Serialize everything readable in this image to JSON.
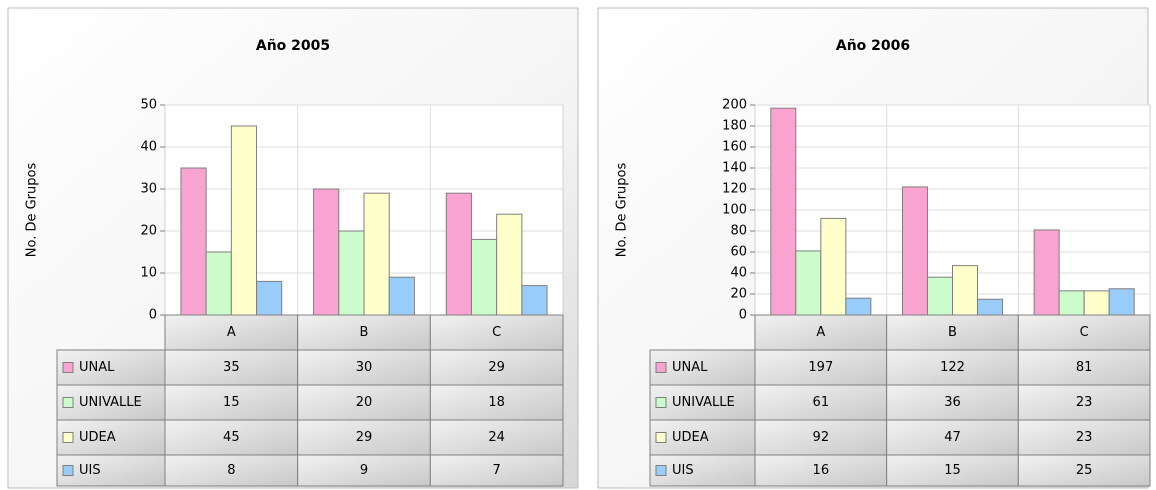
{
  "chart_data": [
    {
      "type": "bar",
      "title": "Año 2005",
      "y_label": "No. De Grupos",
      "categories": [
        "A",
        "B",
        "C"
      ],
      "series": [
        {
          "name": "UNAL",
          "color": "#f9a3d0",
          "values": [
            35,
            30,
            29
          ]
        },
        {
          "name": "UNIVALLE",
          "color": "#ccfccc",
          "values": [
            15,
            20,
            18
          ]
        },
        {
          "name": "UDEA",
          "color": "#ffffcc",
          "values": [
            45,
            29,
            24
          ]
        },
        {
          "name": "UIS",
          "color": "#99ccf8",
          "values": [
            8,
            9,
            7
          ]
        }
      ],
      "ylim": [
        0,
        50
      ],
      "yticks": [
        0,
        10,
        20,
        30,
        40,
        50
      ],
      "grid": true
    },
    {
      "type": "bar",
      "title": "Año 2006",
      "y_label": "No. De Grupos",
      "categories": [
        "A",
        "B",
        "C"
      ],
      "series": [
        {
          "name": "UNAL",
          "color": "#f9a3d0",
          "values": [
            197,
            122,
            81
          ]
        },
        {
          "name": "UNIVALLE",
          "color": "#ccfccc",
          "values": [
            61,
            36,
            23
          ]
        },
        {
          "name": "UDEA",
          "color": "#ffffcc",
          "values": [
            92,
            47,
            23
          ]
        },
        {
          "name": "UIS",
          "color": "#99ccf8",
          "values": [
            16,
            15,
            25
          ]
        }
      ],
      "ylim": [
        0,
        200
      ],
      "yticks": [
        0,
        20,
        40,
        60,
        80,
        100,
        120,
        140,
        160,
        180,
        200
      ],
      "grid": true
    }
  ]
}
